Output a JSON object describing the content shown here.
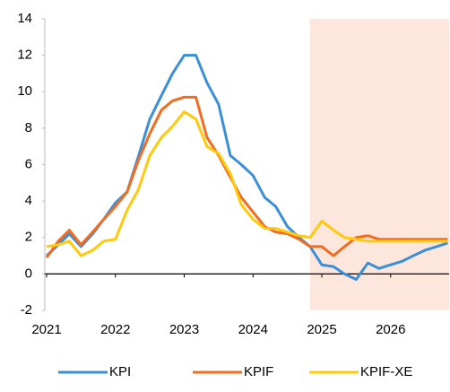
{
  "chart_data": {
    "type": "line",
    "x": [
      2021,
      2021.17,
      2021.33,
      2021.5,
      2021.67,
      2021.83,
      2022,
      2022.17,
      2022.33,
      2022.5,
      2022.67,
      2022.83,
      2023,
      2023.17,
      2023.33,
      2023.5,
      2023.67,
      2023.83,
      2024,
      2024.17,
      2024.33,
      2024.5,
      2024.67,
      2024.83,
      2025,
      2025.17,
      2025.33,
      2025.5,
      2025.67,
      2025.83,
      2026,
      2026.17,
      2026.33,
      2026.5,
      2026.67,
      2026.83
    ],
    "series": [
      {
        "name": "KPI",
        "color": "#3a8fd9",
        "values": [
          1.0,
          1.6,
          2.2,
          1.5,
          2.2,
          3.0,
          3.9,
          4.5,
          6.4,
          8.5,
          9.8,
          11.0,
          12.0,
          12.0,
          10.5,
          9.3,
          6.5,
          6.0,
          5.4,
          4.2,
          3.7,
          2.6,
          2.0,
          1.5,
          0.5,
          0.4,
          0.0,
          -0.3,
          0.6,
          0.3,
          0.5,
          0.7,
          1.0,
          1.3,
          1.5,
          1.7
        ]
      },
      {
        "name": "KPIF",
        "color": "#f26c21",
        "values": [
          0.9,
          1.8,
          2.4,
          1.6,
          2.3,
          3.0,
          3.7,
          4.5,
          6.2,
          7.7,
          9.0,
          9.5,
          9.7,
          9.7,
          7.5,
          6.5,
          5.3,
          4.2,
          3.4,
          2.6,
          2.3,
          2.2,
          1.9,
          1.5,
          1.5,
          1.0,
          1.5,
          2.0,
          2.1,
          1.9,
          1.9,
          1.9,
          1.9,
          1.9,
          1.9,
          1.9
        ]
      },
      {
        "name": "KPIF-XE",
        "color": "#ffc90e",
        "values": [
          1.5,
          1.6,
          1.8,
          1.0,
          1.3,
          1.8,
          1.9,
          3.5,
          4.6,
          6.5,
          7.5,
          8.1,
          8.9,
          8.5,
          7.0,
          6.6,
          5.5,
          3.8,
          3.0,
          2.5,
          2.5,
          2.3,
          2.1,
          2.0,
          2.9,
          2.4,
          2.0,
          1.9,
          1.8,
          1.8,
          1.8,
          1.8,
          1.8,
          1.8,
          1.8,
          1.8
        ]
      }
    ],
    "shade": [
      2024.83,
      2026.85
    ],
    "shade_color": "#fde6dc",
    "xlim": [
      2021,
      2026.85
    ],
    "xticks": [
      2021,
      2022,
      2023,
      2024,
      2025,
      2026
    ],
    "ylim": [
      -2,
      14
    ],
    "yticks": [
      -2,
      0,
      2,
      4,
      6,
      8,
      10,
      12,
      14
    ],
    "grid": false,
    "legend": "bottom"
  }
}
